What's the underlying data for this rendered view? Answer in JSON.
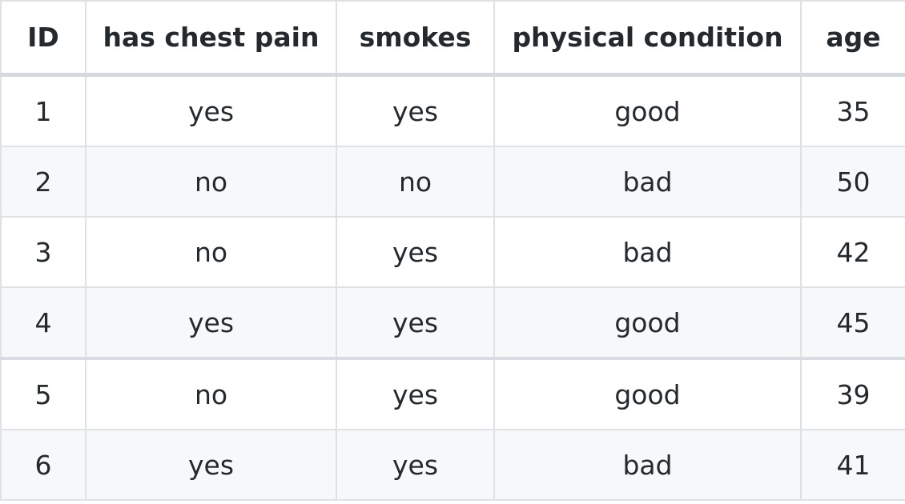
{
  "table": {
    "headers": [
      "ID",
      "has chest pain",
      "smokes",
      "physical condition",
      "age"
    ],
    "rows": [
      [
        "1",
        "yes",
        "yes",
        "good",
        "35"
      ],
      [
        "2",
        "no",
        "no",
        "bad",
        "50"
      ],
      [
        "3",
        "no",
        "yes",
        "bad",
        "42"
      ],
      [
        "4",
        "yes",
        "yes",
        "good",
        "45"
      ],
      [
        "5",
        "no",
        "yes",
        "good",
        "39"
      ],
      [
        "6",
        "yes",
        "yes",
        "bad",
        "41"
      ]
    ]
  },
  "colors": {
    "text": "#24292e",
    "border": "#dfe2e5",
    "stripe": "#f6f8fa",
    "background": "#ffffff"
  }
}
